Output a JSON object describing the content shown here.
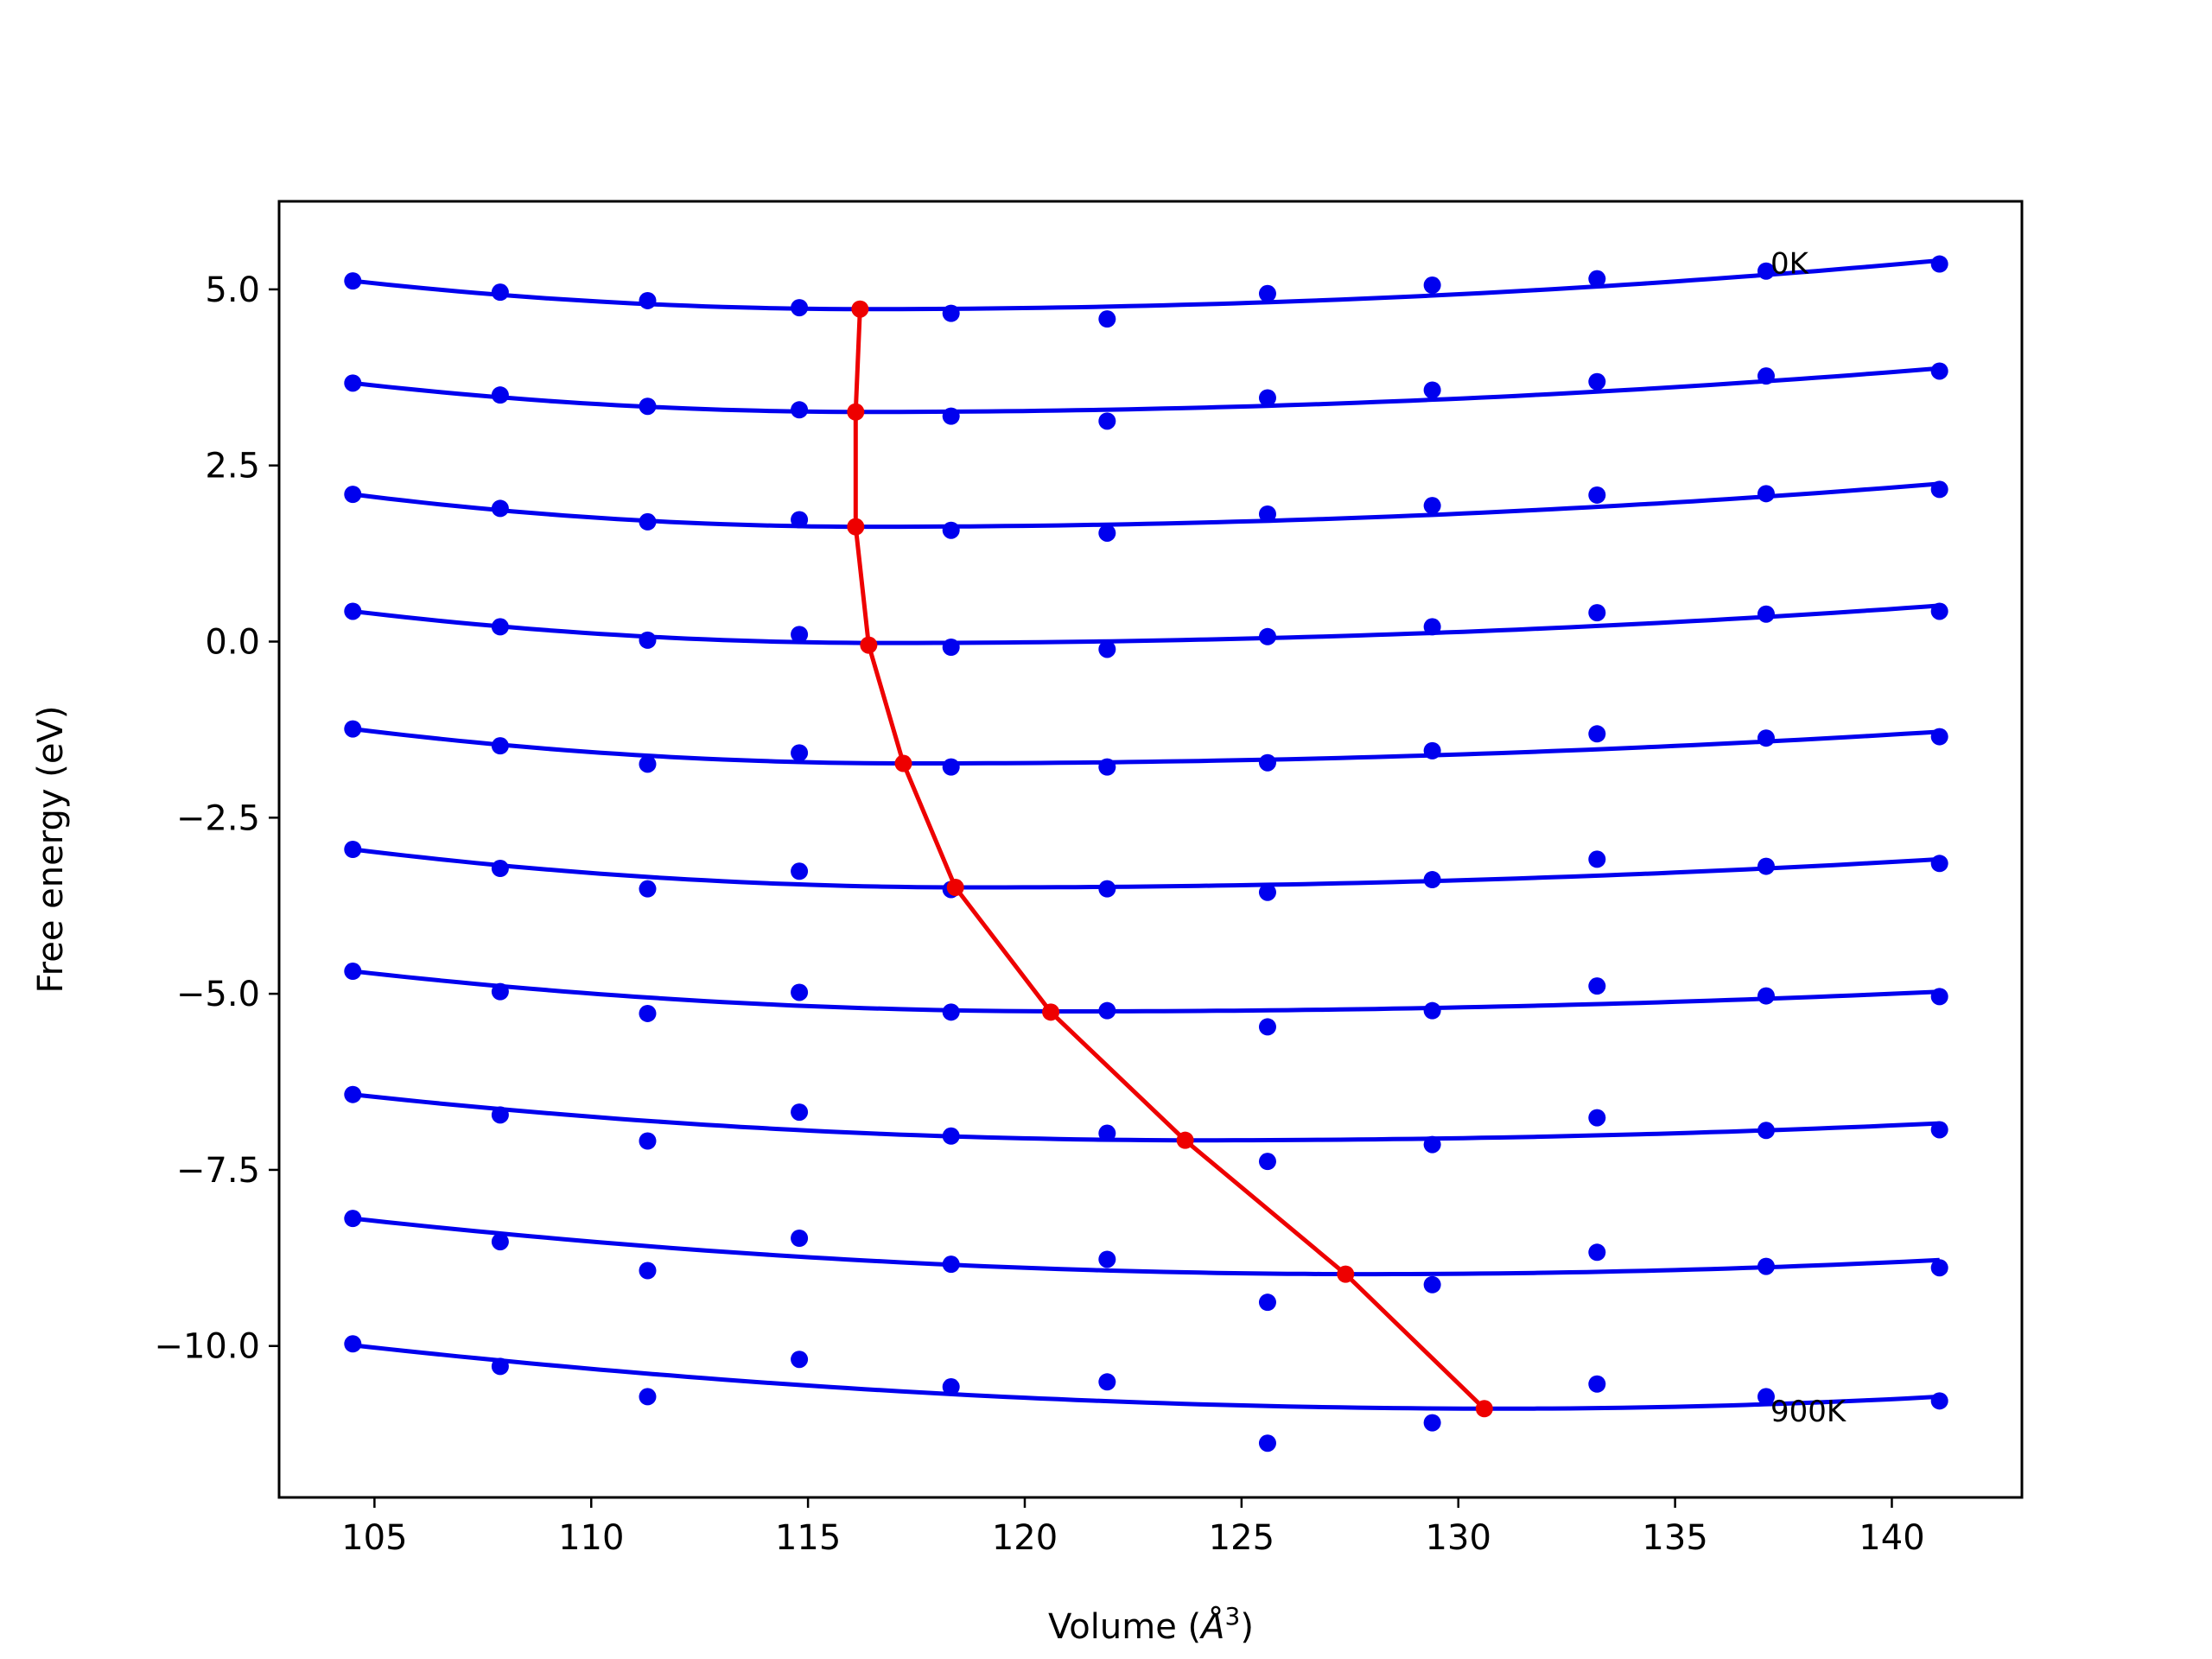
{
  "chart_data": {
    "type": "scatter",
    "xlabel": "Volume (",
    "xlabel_unit": "Å",
    "xlabel_exp": "3",
    "xlabel_close": ")",
    "ylabel": "Free energy (eV)",
    "xlim": [
      102.8,
      143.0
    ],
    "ylim": [
      -12.15,
      6.25
    ],
    "xticks": [
      105,
      110,
      115,
      120,
      125,
      130,
      135,
      140
    ],
    "yticks": [
      5.0,
      2.5,
      0.0,
      -2.5,
      -5.0,
      -7.5,
      -10.0
    ],
    "ytick_labels": [
      "5.0",
      "2.5",
      "0.0",
      "−2.5",
      "−5.0",
      "−7.5",
      "−10.0"
    ],
    "grid": false,
    "colors": {
      "points": "#0000ee",
      "fit": "#0000ee",
      "minimum": "#ee0000"
    },
    "x": [
      104.5,
      107.9,
      111.3,
      114.8,
      118.3,
      121.9,
      125.6,
      129.4,
      133.2,
      137.1,
      141.1
    ],
    "series": [
      {
        "values": [
          5.12,
          4.96,
          4.84,
          4.74,
          4.66,
          4.58,
          4.94,
          5.06,
          5.15,
          5.26,
          5.36
        ]
      },
      {
        "values": [
          3.67,
          3.5,
          3.34,
          3.29,
          3.2,
          3.13,
          3.46,
          3.57,
          3.69,
          3.77,
          3.84
        ]
      },
      {
        "values": [
          2.09,
          1.89,
          1.7,
          1.73,
          1.58,
          1.54,
          1.81,
          1.93,
          2.08,
          2.1,
          2.16
        ]
      },
      {
        "values": [
          0.43,
          0.21,
          0.02,
          0.1,
          -0.08,
          -0.11,
          0.07,
          0.21,
          0.41,
          0.39,
          0.43
        ]
      },
      {
        "values": [
          -1.24,
          -1.48,
          -1.74,
          -1.58,
          -1.78,
          -1.78,
          -1.72,
          -1.55,
          -1.31,
          -1.37,
          -1.35
        ]
      },
      {
        "values": [
          -2.95,
          -3.22,
          -3.51,
          -3.26,
          -3.52,
          -3.51,
          -3.56,
          -3.38,
          -3.09,
          -3.19,
          -3.15
        ]
      },
      {
        "values": [
          -4.68,
          -4.97,
          -5.28,
          -4.98,
          -5.26,
          -5.24,
          -5.47,
          -5.24,
          -4.89,
          -5.03,
          -5.04
        ]
      },
      {
        "values": [
          -6.43,
          -6.72,
          -7.09,
          -6.68,
          -7.02,
          -6.98,
          -7.38,
          -7.14,
          -6.76,
          -6.94,
          -6.93
        ]
      },
      {
        "values": [
          -8.19,
          -8.52,
          -8.93,
          -8.47,
          -8.84,
          -8.77,
          -9.38,
          -9.13,
          -8.67,
          -8.87,
          -8.89
        ]
      },
      {
        "values": [
          -9.97,
          -10.29,
          -10.72,
          -10.19,
          -10.58,
          -10.51,
          -11.38,
          -11.09,
          -10.54,
          -10.72,
          -10.78
        ]
      }
    ],
    "fits": [
      {
        "vmin": 116.3,
        "emin": 4.72,
        "left": 5.12,
        "right": 5.41
      },
      {
        "vmin": 116.3,
        "emin": 3.26,
        "left": 3.67,
        "right": 3.88
      },
      {
        "vmin": 116.4,
        "emin": 1.63,
        "left": 2.09,
        "right": 2.24
      },
      {
        "vmin": 116.8,
        "emin": -0.02,
        "left": 0.43,
        "right": 0.51
      },
      {
        "vmin": 117.4,
        "emin": -1.73,
        "left": -1.24,
        "right": -1.28
      },
      {
        "vmin": 118.8,
        "emin": -3.49,
        "left": -2.95,
        "right": -3.09
      },
      {
        "vmin": 121.0,
        "emin": -5.25,
        "left": -4.68,
        "right": -4.97
      },
      {
        "vmin": 124.0,
        "emin": -7.08,
        "left": -6.43,
        "right": -6.84
      },
      {
        "vmin": 127.9,
        "emin": -8.98,
        "left": -8.19,
        "right": -8.78
      },
      {
        "vmin": 131.0,
        "emin": -10.89,
        "left": -9.99,
        "right": -10.72
      }
    ],
    "minimum_curve": {
      "x": [
        116.2,
        116.1,
        116.1,
        116.4,
        117.2,
        118.4,
        120.6,
        123.7,
        127.4,
        130.6
      ],
      "y": [
        4.72,
        3.26,
        1.63,
        -0.05,
        -1.73,
        -3.49,
        -5.26,
        -7.08,
        -8.98,
        -10.89
      ]
    },
    "annotations": [
      {
        "text": "0K",
        "x": 137.2,
        "y": 5.35
      },
      {
        "text": "900K",
        "x": 137.2,
        "y": -10.95
      }
    ]
  }
}
